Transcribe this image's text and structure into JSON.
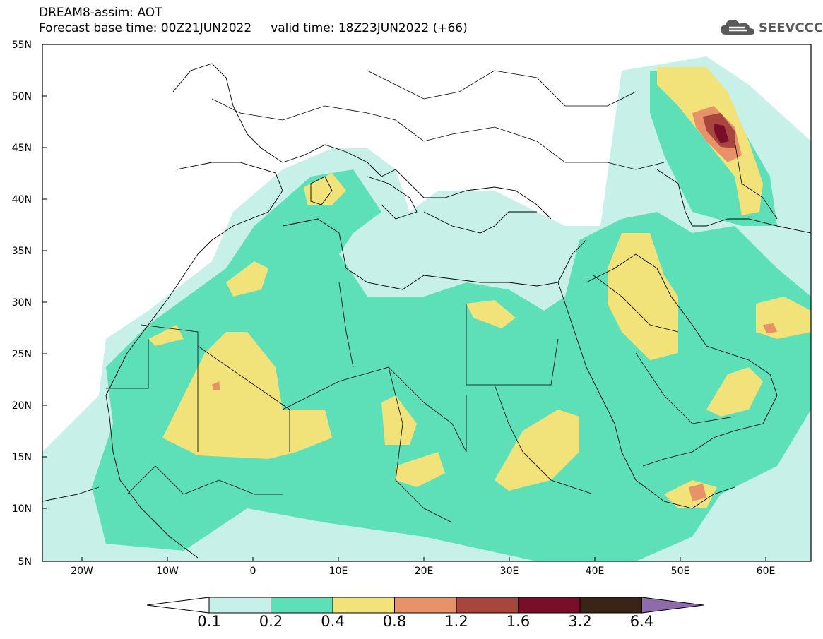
{
  "header": {
    "title": "DREAM8-assim: AOT",
    "base_time_label": "Forecast base time: 00Z21JUN2022",
    "valid_time_label": "valid time: 18Z23JUN2022 (+66)"
  },
  "logo": {
    "text": "SEEVCCC",
    "icon": "cloud-icon"
  },
  "map": {
    "lat_ticks": [
      "55N",
      "50N",
      "45N",
      "40N",
      "35N",
      "30N",
      "25N",
      "20N",
      "15N",
      "10N",
      "5N"
    ],
    "lon_ticks": [
      "20W",
      "10W",
      "0",
      "10E",
      "20E",
      "30E",
      "40E",
      "50E",
      "60E"
    ],
    "lon_range": [
      -25,
      65
    ],
    "lat_range": [
      5,
      55
    ]
  },
  "legend": {
    "labels": [
      "0.1",
      "0.2",
      "0.4",
      "0.8",
      "1.2",
      "1.6",
      "3.2",
      "6.4"
    ],
    "colors": [
      "#ffffff",
      "#c6f0e8",
      "#5ddfb8",
      "#f2e27a",
      "#e8926a",
      "#a8453d",
      "#7a0e2a",
      "#3a2418",
      "#8e6bab"
    ]
  }
}
